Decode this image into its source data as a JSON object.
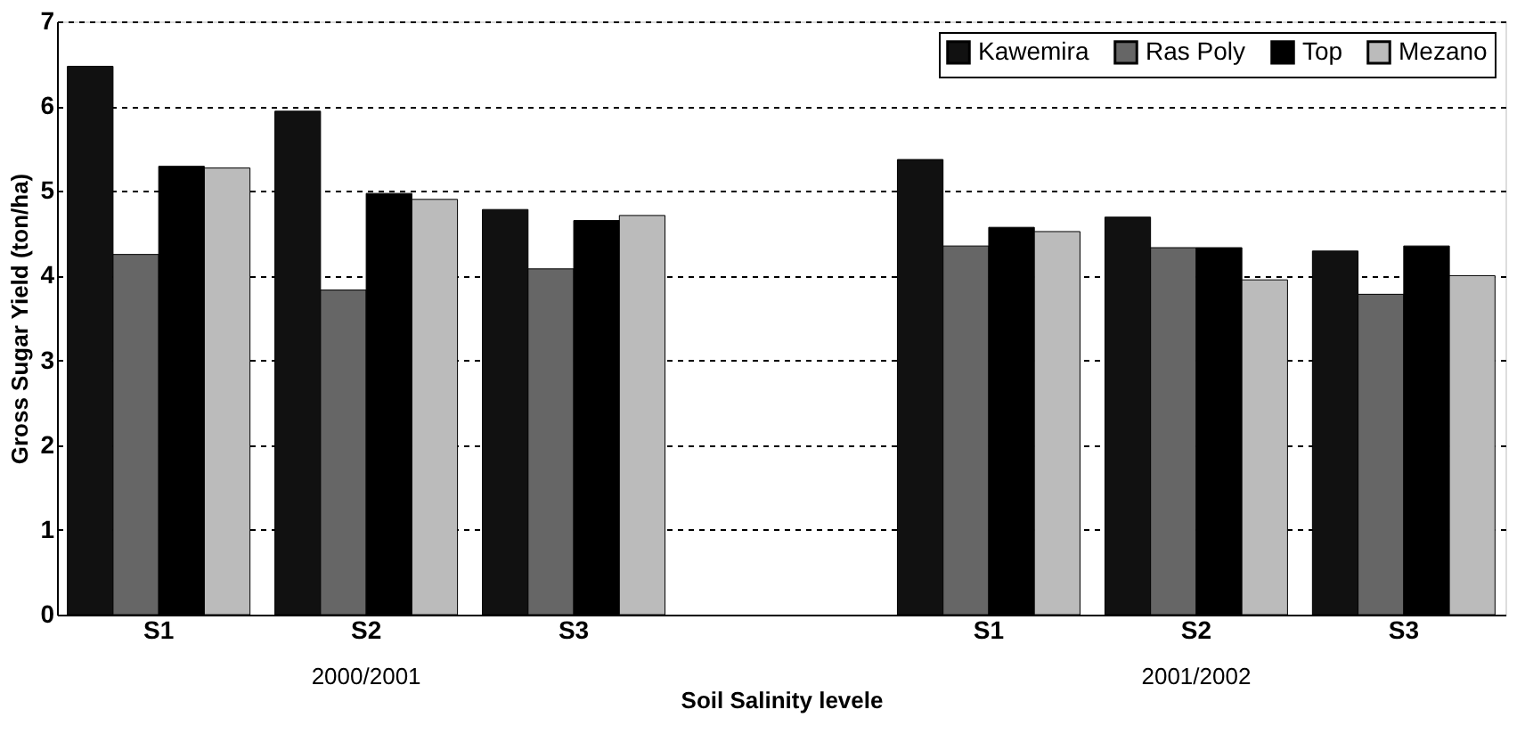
{
  "chart_data": {
    "type": "bar",
    "ylabel": "Gross Sugar Yield (ton/ha)",
    "xlabel": "Soil Salinity levele",
    "categories": [
      "S1",
      "S2",
      "S3",
      null,
      "S1",
      "S2",
      "S3"
    ],
    "series": [
      {
        "name": "Kawemira",
        "color": "#111111",
        "values": [
          6.47,
          5.94,
          4.78,
          null,
          5.37,
          4.69,
          4.29
        ]
      },
      {
        "name": "Ras Poly",
        "color": "#666666",
        "values": [
          4.25,
          3.83,
          4.08,
          null,
          4.35,
          4.33,
          3.78
        ]
      },
      {
        "name": "Top",
        "color": "#000000",
        "values": [
          5.29,
          4.97,
          4.65,
          null,
          4.57,
          4.33,
          4.35
        ]
      },
      {
        "name": "Mezano",
        "color": "#bbbbbb",
        "values": [
          5.27,
          4.9,
          4.71,
          null,
          4.52,
          3.95,
          4.0
        ]
      }
    ],
    "ylim": [
      0,
      7
    ],
    "yticks": [
      0,
      1,
      2,
      3,
      4,
      5,
      6,
      7
    ],
    "grid": "y",
    "legend": "top right",
    "annotations": [
      "2000/2001",
      "2001/2002"
    ]
  }
}
